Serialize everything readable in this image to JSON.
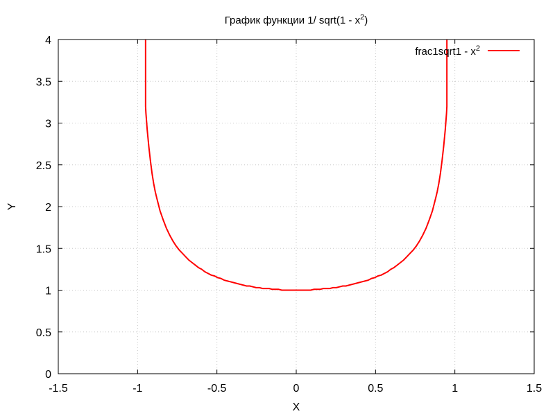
{
  "chart_data": {
    "type": "line",
    "title": {
      "text": "График функции 1/ sqrt(1 - x",
      "sup": "2",
      "suffix": ")"
    },
    "xlabel": "X",
    "ylabel": "Y",
    "xlim": [
      -1.5,
      1.5
    ],
    "ylim": [
      0,
      4
    ],
    "x_ticks": [
      -1.5,
      -1,
      -0.5,
      0,
      0.5,
      1,
      1.5
    ],
    "x_tick_labels": [
      "-1.5",
      "-1",
      "-0.5",
      "0",
      "0.5",
      "1",
      "1.5"
    ],
    "y_ticks": [
      0,
      0.5,
      1,
      1.5,
      2,
      2.5,
      3,
      3.5,
      4
    ],
    "y_tick_labels": [
      "0",
      "0.5",
      "1",
      "1.5",
      "2",
      "2.5",
      "3",
      "3.5",
      "4"
    ],
    "grid": true,
    "legend_position": "top-right",
    "series": [
      {
        "name": "frac1sqrt1 - x",
        "name_sup": "2",
        "color": "#ff0000",
        "x": [
          -0.9497,
          -0.9475,
          -0.9394,
          -0.9293,
          -0.9192,
          -0.9091,
          -0.899,
          -0.8889,
          -0.8788,
          -0.8586,
          -0.8384,
          -0.8182,
          -0.798,
          -0.7778,
          -0.7576,
          -0.7374,
          -0.7172,
          -0.697,
          -0.6768,
          -0.6566,
          -0.6364,
          -0.6162,
          -0.596,
          -0.5758,
          -0.5556,
          -0.5354,
          -0.5152,
          -0.4949,
          -0.4747,
          -0.4545,
          -0.4343,
          -0.4141,
          -0.3939,
          -0.3737,
          -0.3535,
          -0.3333,
          -0.3131,
          -0.2929,
          -0.2727,
          -0.2525,
          -0.2323,
          -0.2121,
          -0.1919,
          -0.1717,
          -0.1515,
          -0.1313,
          -0.1111,
          -0.0909,
          -0.0707,
          -0.0505,
          -0.0303,
          -0.0101,
          0.0101,
          0.0303,
          0.0505,
          0.0707,
          0.0909,
          0.1111,
          0.1313,
          0.1515,
          0.1717,
          0.1919,
          0.2121,
          0.2323,
          0.2525,
          0.2727,
          0.2929,
          0.3131,
          0.3333,
          0.3535,
          0.3737,
          0.3939,
          0.4141,
          0.4343,
          0.4545,
          0.4747,
          0.4949,
          0.5152,
          0.5354,
          0.5556,
          0.5758,
          0.596,
          0.6162,
          0.6364,
          0.6566,
          0.6768,
          0.697,
          0.7172,
          0.7374,
          0.7576,
          0.7778,
          0.798,
          0.8182,
          0.8384,
          0.8586,
          0.8788,
          0.8889,
          0.899,
          0.9091,
          0.9192,
          0.9293,
          0.9394,
          0.9475,
          0.9497
        ],
        "y": [
          3.2,
          3.12,
          2.92,
          2.72,
          2.55,
          2.4,
          2.28,
          2.18,
          2.1,
          1.95,
          1.84,
          1.74,
          1.66,
          1.59,
          1.53,
          1.48,
          1.44,
          1.4,
          1.36,
          1.33,
          1.3,
          1.27,
          1.25,
          1.22,
          1.2,
          1.18,
          1.17,
          1.15,
          1.14,
          1.12,
          1.11,
          1.1,
          1.09,
          1.08,
          1.07,
          1.06,
          1.05,
          1.05,
          1.04,
          1.03,
          1.03,
          1.02,
          1.02,
          1.02,
          1.01,
          1.01,
          1.01,
          1.0,
          1.0,
          1.0,
          1.0,
          1.0,
          1.0,
          1.0,
          1.0,
          1.0,
          1.0,
          1.01,
          1.01,
          1.01,
          1.02,
          1.02,
          1.02,
          1.03,
          1.03,
          1.04,
          1.05,
          1.05,
          1.06,
          1.07,
          1.08,
          1.09,
          1.1,
          1.11,
          1.12,
          1.14,
          1.15,
          1.17,
          1.18,
          1.2,
          1.22,
          1.25,
          1.27,
          1.3,
          1.33,
          1.36,
          1.4,
          1.44,
          1.48,
          1.53,
          1.59,
          1.66,
          1.74,
          1.84,
          1.95,
          2.1,
          2.18,
          2.28,
          2.4,
          2.55,
          2.72,
          2.92,
          3.12,
          3.2
        ]
      }
    ]
  }
}
